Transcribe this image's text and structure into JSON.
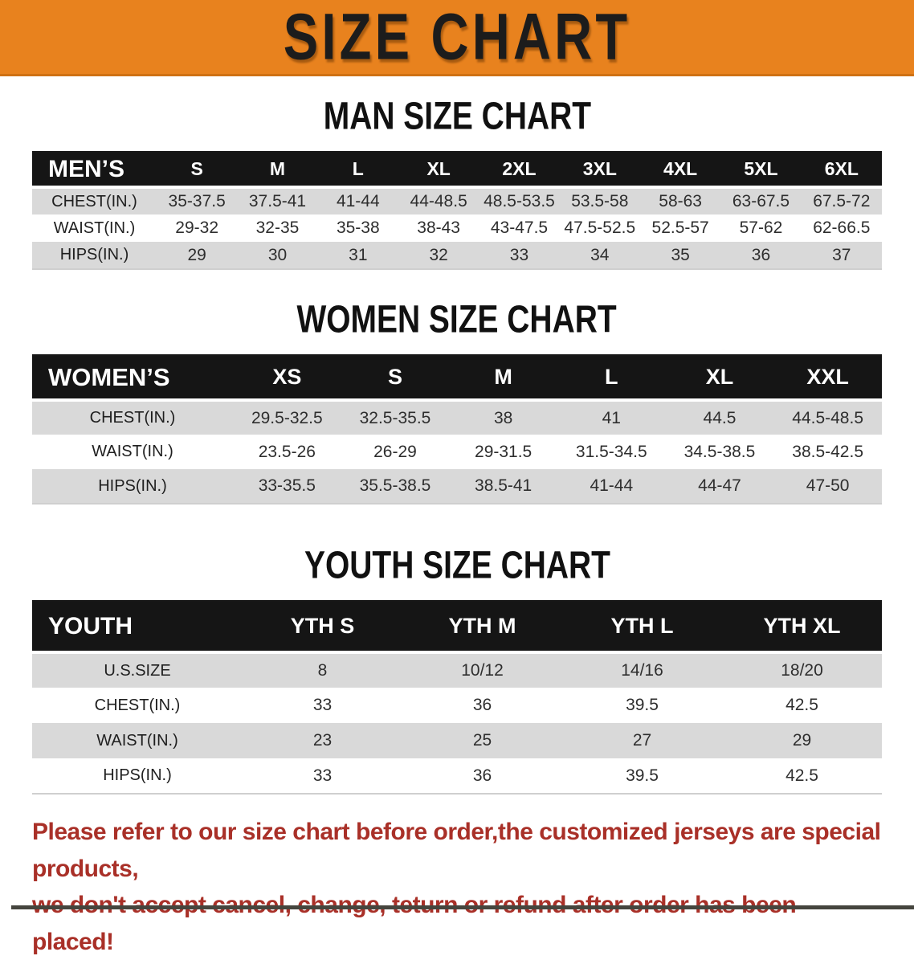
{
  "banner": {
    "title": "SIZE CHART"
  },
  "colors": {
    "banner_bg": "#e8821e",
    "table_header_bg": "#151515",
    "row_alt_gray": "#d9d9d9",
    "disclaimer_red": "#a93028"
  },
  "sections": [
    {
      "heading": "MAN SIZE CHART",
      "table": {
        "header_label": "MEN’S",
        "columns": [
          "S",
          "M",
          "L",
          "XL",
          "2XL",
          "3XL",
          "4XL",
          "5XL",
          "6XL"
        ],
        "rows": [
          {
            "label": "CHEST(IN.)",
            "values": [
              "35-37.5",
              "37.5-41",
              "41-44",
              "44-48.5",
              "48.5-53.5",
              "53.5-58",
              "58-63",
              "63-67.5",
              "67.5-72"
            ]
          },
          {
            "label": "WAIST(IN.)",
            "values": [
              "29-32",
              "32-35",
              "35-38",
              "38-43",
              "43-47.5",
              "47.5-52.5",
              "52.5-57",
              "57-62",
              "62-66.5"
            ]
          },
          {
            "label": "HIPS(IN.)",
            "values": [
              "29",
              "30",
              "31",
              "32",
              "33",
              "34",
              "35",
              "36",
              "37"
            ]
          }
        ]
      }
    },
    {
      "heading": "WOMEN SIZE CHART",
      "table": {
        "header_label": "WOMEN’S",
        "columns": [
          "XS",
          "S",
          "M",
          "L",
          "XL",
          "XXL"
        ],
        "rows": [
          {
            "label": "CHEST(IN.)",
            "values": [
              "29.5-32.5",
              "32.5-35.5",
              "38",
              "41",
              "44.5",
              "44.5-48.5"
            ]
          },
          {
            "label": "WAIST(IN.)",
            "values": [
              "23.5-26",
              "26-29",
              "29-31.5",
              "31.5-34.5",
              "34.5-38.5",
              "38.5-42.5"
            ]
          },
          {
            "label": "HIPS(IN.)",
            "values": [
              "33-35.5",
              "35.5-38.5",
              "38.5-41",
              "41-44",
              "44-47",
              "47-50"
            ]
          }
        ]
      }
    },
    {
      "heading": "YOUTH SIZE CHART",
      "table": {
        "header_label": "YOUTH",
        "columns": [
          "YTH S",
          "YTH M",
          "YTH L",
          "YTH XL"
        ],
        "rows": [
          {
            "label": "U.S.SIZE",
            "values": [
              "8",
              "10/12",
              "14/16",
              "18/20"
            ]
          },
          {
            "label": "CHEST(IN.)",
            "values": [
              "33",
              "36",
              "39.5",
              "42.5"
            ]
          },
          {
            "label": "WAIST(IN.)",
            "values": [
              "23",
              "25",
              "27",
              "29"
            ]
          },
          {
            "label": "HIPS(IN.)",
            "values": [
              "33",
              "36",
              "39.5",
              "42.5"
            ]
          }
        ]
      }
    }
  ],
  "disclaimer": {
    "line1": "Please refer to our size chart before order,the customized jerseys are special products,",
    "line2": "we don't accept cancel, change, teturn or refund after order has been placed!"
  }
}
